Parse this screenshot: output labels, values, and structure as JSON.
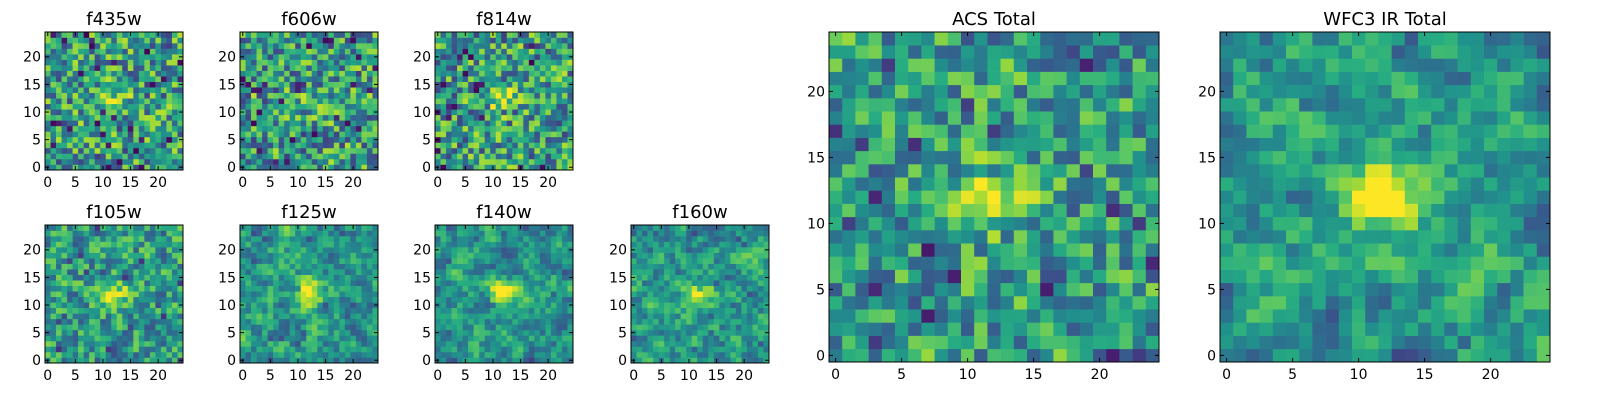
{
  "chart_data": [
    {
      "type": "heatmap",
      "title": "f435w",
      "grid_size": 25,
      "colormap": "viridis",
      "xlim": [
        0,
        24
      ],
      "ylim": [
        0,
        24
      ],
      "x_ticks": [
        "0",
        "5",
        "10",
        "15",
        "20"
      ],
      "y_ticks": [
        "0",
        "5",
        "10",
        "15",
        "20"
      ],
      "center_brightness": 0.3,
      "blur": 0,
      "seed": 11
    },
    {
      "type": "heatmap",
      "title": "f606w",
      "grid_size": 25,
      "colormap": "viridis",
      "xlim": [
        0,
        24
      ],
      "ylim": [
        0,
        24
      ],
      "x_ticks": [
        "0",
        "5",
        "10",
        "15",
        "20"
      ],
      "y_ticks": [
        "0",
        "5",
        "10",
        "15",
        "20"
      ],
      "center_brightness": 0.2,
      "blur": 0,
      "seed": 23
    },
    {
      "type": "heatmap",
      "title": "f814w",
      "grid_size": 25,
      "colormap": "viridis",
      "xlim": [
        0,
        24
      ],
      "ylim": [
        0,
        24
      ],
      "x_ticks": [
        "0",
        "5",
        "10",
        "15",
        "20"
      ],
      "y_ticks": [
        "0",
        "5",
        "10",
        "15",
        "20"
      ],
      "center_brightness": 0.5,
      "blur": 0,
      "seed": 37
    },
    {
      "type": "heatmap",
      "title": "f105w",
      "grid_size": 25,
      "colormap": "viridis",
      "xlim": [
        0,
        24
      ],
      "ylim": [
        0,
        24
      ],
      "x_ticks": [
        "0",
        "5",
        "10",
        "15",
        "20"
      ],
      "y_ticks": [
        "0",
        "5",
        "10",
        "15",
        "20"
      ],
      "center_brightness": 0.55,
      "blur": 0.3,
      "seed": 41
    },
    {
      "type": "heatmap",
      "title": "f125w",
      "grid_size": 25,
      "colormap": "viridis",
      "xlim": [
        0,
        24
      ],
      "ylim": [
        0,
        24
      ],
      "x_ticks": [
        "0",
        "5",
        "10",
        "15",
        "20"
      ],
      "y_ticks": [
        "0",
        "5",
        "10",
        "15",
        "20"
      ],
      "center_brightness": 0.6,
      "blur": 0.5,
      "seed": 53
    },
    {
      "type": "heatmap",
      "title": "f140w",
      "grid_size": 25,
      "colormap": "viridis",
      "xlim": [
        0,
        24
      ],
      "ylim": [
        0,
        24
      ],
      "x_ticks": [
        "0",
        "5",
        "10",
        "15",
        "20"
      ],
      "y_ticks": [
        "0",
        "5",
        "10",
        "15",
        "20"
      ],
      "center_brightness": 0.6,
      "blur": 0.6,
      "seed": 67
    },
    {
      "type": "heatmap",
      "title": "f160w",
      "grid_size": 25,
      "colormap": "viridis",
      "xlim": [
        0,
        24
      ],
      "ylim": [
        0,
        24
      ],
      "x_ticks": [
        "0",
        "5",
        "10",
        "15",
        "20"
      ],
      "y_ticks": [
        "0",
        "5",
        "10",
        "15",
        "20"
      ],
      "center_brightness": 0.45,
      "blur": 0.55,
      "seed": 71
    },
    {
      "type": "heatmap",
      "title": "ACS Total",
      "grid_size": 25,
      "colormap": "viridis",
      "xlim": [
        0,
        24
      ],
      "ylim": [
        0,
        24
      ],
      "x_ticks": [
        "0",
        "5",
        "10",
        "15",
        "20"
      ],
      "y_ticks": [
        "0",
        "5",
        "10",
        "15",
        "20"
      ],
      "center_brightness": 0.55,
      "blur": 0.2,
      "seed": 83
    },
    {
      "type": "heatmap",
      "title": "WFC3 IR Total",
      "grid_size": 25,
      "colormap": "viridis",
      "xlim": [
        0,
        24
      ],
      "ylim": [
        0,
        24
      ],
      "x_ticks": [
        "0",
        "5",
        "10",
        "15",
        "20"
      ],
      "y_ticks": [
        "0",
        "5",
        "10",
        "15",
        "20"
      ],
      "center_brightness": 0.8,
      "blur": 0.6,
      "seed": 97
    }
  ]
}
